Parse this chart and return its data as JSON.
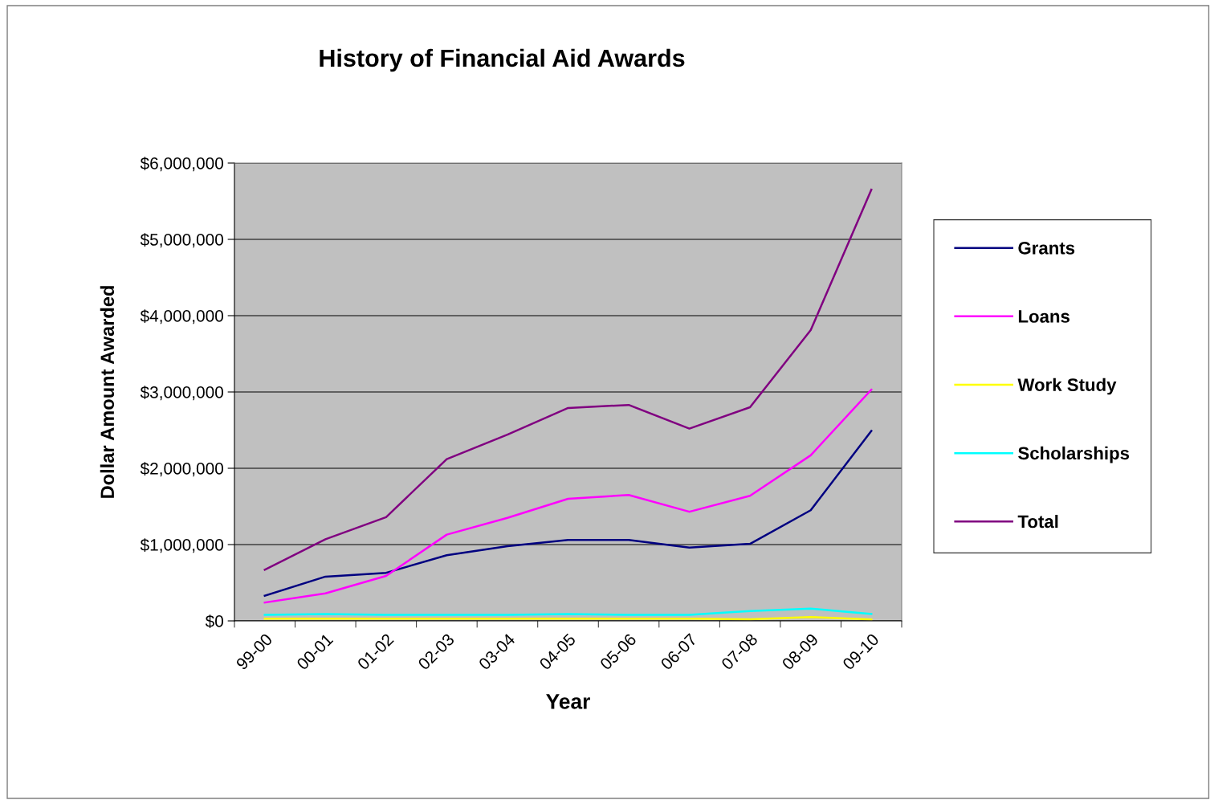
{
  "chart_data": {
    "type": "line",
    "title": "History of Financial Aid Awards",
    "xlabel": "Year",
    "ylabel": "Dollar Amount Awarded",
    "categories": [
      "99-00",
      "00-01",
      "01-02",
      "02-03",
      "03-04",
      "04-05",
      "05-06",
      "06-07",
      "07-08",
      "08-09",
      "09-10"
    ],
    "series": [
      {
        "name": "Grants",
        "color": "#000080",
        "values": [
          330000,
          580000,
          630000,
          860000,
          980000,
          1060000,
          1060000,
          960000,
          1010000,
          1450000,
          2490000
        ]
      },
      {
        "name": "Loans",
        "color": "#ff00ff",
        "values": [
          240000,
          360000,
          590000,
          1130000,
          1350000,
          1600000,
          1650000,
          1430000,
          1640000,
          2170000,
          3030000
        ]
      },
      {
        "name": "Work Study",
        "color": "#ffff00",
        "values": [
          30000,
          30000,
          30000,
          30000,
          30000,
          30000,
          30000,
          30000,
          20000,
          50000,
          20000
        ]
      },
      {
        "name": "Scholarships",
        "color": "#00ffff",
        "values": [
          80000,
          90000,
          80000,
          80000,
          80000,
          90000,
          80000,
          80000,
          130000,
          160000,
          90000
        ]
      },
      {
        "name": "Total",
        "color": "#800080",
        "values": [
          670000,
          1070000,
          1360000,
          2120000,
          2440000,
          2790000,
          2830000,
          2520000,
          2800000,
          3810000,
          5650000
        ]
      }
    ],
    "ylim": [
      0,
      6000000
    ],
    "yticks": [
      {
        "value": 0,
        "label": "$0"
      },
      {
        "value": 1000000,
        "label": "$1,000,000"
      },
      {
        "value": 2000000,
        "label": "$2,000,000"
      },
      {
        "value": 3000000,
        "label": "$3,000,000"
      },
      {
        "value": 4000000,
        "label": "$4,000,000"
      },
      {
        "value": 5000000,
        "label": "$5,000,000"
      },
      {
        "value": 6000000,
        "label": "$6,000,000"
      }
    ],
    "grid": "y",
    "legend": "right",
    "marker": "none",
    "line_style": "solid"
  }
}
